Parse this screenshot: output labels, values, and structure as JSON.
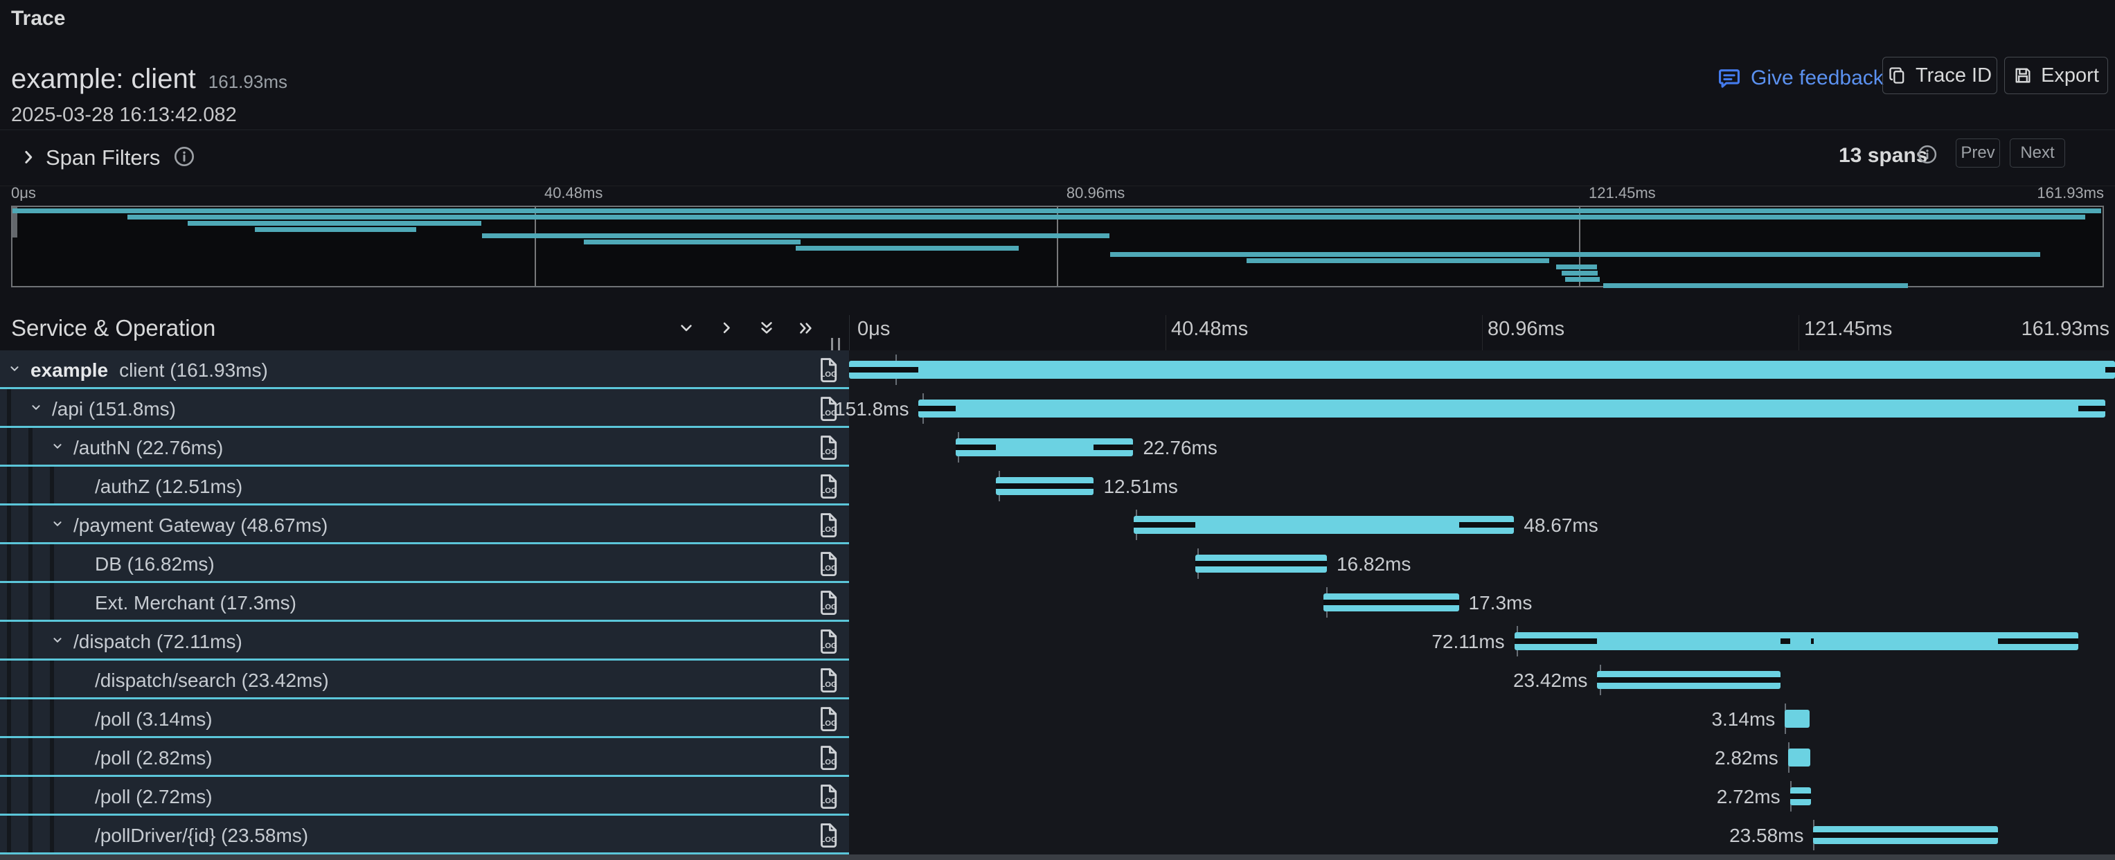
{
  "header": {
    "title": "Trace",
    "trace_name": "example: client",
    "trace_duration": "161.93ms",
    "timestamp": "2025-03-28 16:13:42.082",
    "feedback_label": "Give feedback",
    "trace_id_label": "Trace ID",
    "export_label": "Export"
  },
  "filters": {
    "label": "Span Filters",
    "span_count": "13 spans",
    "prev_label": "Prev",
    "next_label": "Next"
  },
  "table_header": "Service & Operation",
  "timeline": {
    "total_ms": 161.93,
    "tick_ms": [
      0,
      40.48,
      80.96,
      121.45,
      161.93
    ],
    "tick_labels": [
      "0μs",
      "40.48ms",
      "80.96ms",
      "121.45ms",
      "161.93ms"
    ]
  },
  "colors": {
    "span_bar": "#6bd2e2",
    "minimap_bar": "#4fa9b7",
    "critical_path": "#0d0f12",
    "link_blue": "#5b91f0",
    "row_underline": "#5bc6d9"
  },
  "spans": [
    {
      "service": "example",
      "label": "client (161.93ms)",
      "level": 0,
      "expandable": true,
      "start_ms": 0,
      "duration_ms": 161.93,
      "duration_label": "",
      "label_side": "none",
      "critical_path_ms": [
        [
          0,
          8.9
        ],
        [
          160.7,
          161.93
        ]
      ],
      "log_tick_ms": 5.9
    },
    {
      "service": "",
      "label": "/api (151.8ms)",
      "level": 1,
      "expandable": true,
      "start_ms": 8.9,
      "duration_ms": 151.8,
      "duration_label": "151.8ms",
      "label_side": "left",
      "critical_path_ms": [
        [
          8.9,
          13.6
        ],
        [
          157.2,
          160.7
        ]
      ],
      "log_tick_ms": 9.4
    },
    {
      "service": "",
      "label": "/authN (22.76ms)",
      "level": 2,
      "expandable": true,
      "start_ms": 13.6,
      "duration_ms": 22.76,
      "duration_label": "22.76ms",
      "label_side": "right",
      "critical_path_ms": [
        [
          13.6,
          18.8
        ],
        [
          31.31,
          36.36
        ]
      ],
      "log_tick_ms": 13.9
    },
    {
      "service": "",
      "label": "/authZ (12.51ms)",
      "level": 3,
      "expandable": false,
      "start_ms": 18.8,
      "duration_ms": 12.51,
      "duration_label": "12.51ms",
      "label_side": "right",
      "critical_path_ms": [
        [
          18.8,
          31.31
        ]
      ],
      "log_tick_ms": 19.1
    },
    {
      "service": "",
      "label": "/payment Gateway (48.67ms)",
      "level": 2,
      "expandable": true,
      "start_ms": 36.4,
      "duration_ms": 48.67,
      "duration_label": "48.67ms",
      "label_side": "right",
      "critical_path_ms": [
        [
          36.4,
          44.3
        ],
        [
          78.0,
          85.07
        ]
      ],
      "log_tick_ms": 36.7
    },
    {
      "service": "",
      "label": "DB (16.82ms)",
      "level": 3,
      "expandable": false,
      "start_ms": 44.3,
      "duration_ms": 16.82,
      "duration_label": "16.82ms",
      "label_side": "right",
      "critical_path_ms": [
        [
          44.3,
          61.12
        ]
      ],
      "log_tick_ms": 44.6
    },
    {
      "service": "",
      "label": "Ext. Merchant (17.3ms)",
      "level": 3,
      "expandable": false,
      "start_ms": 60.7,
      "duration_ms": 17.3,
      "duration_label": "17.3ms",
      "label_side": "right",
      "critical_path_ms": [
        [
          60.7,
          78.0
        ]
      ],
      "log_tick_ms": 61.0
    },
    {
      "service": "",
      "label": "/dispatch (72.11ms)",
      "level": 2,
      "expandable": true,
      "start_ms": 85.1,
      "duration_ms": 72.11,
      "duration_label": "72.11ms",
      "label_side": "left",
      "critical_path_ms": [
        [
          85.1,
          95.7
        ],
        [
          119.12,
          120.35
        ],
        [
          123.0,
          123.35
        ],
        [
          147.0,
          157.21
        ]
      ],
      "log_tick_ms": 85.4
    },
    {
      "service": "",
      "label": "/dispatch/search (23.42ms)",
      "level": 3,
      "expandable": false,
      "start_ms": 95.7,
      "duration_ms": 23.42,
      "duration_label": "23.42ms",
      "label_side": "left",
      "critical_path_ms": [
        [
          95.7,
          119.12
        ]
      ],
      "log_tick_ms": 96.0
    },
    {
      "service": "",
      "label": "/poll (3.14ms)",
      "level": 3,
      "expandable": false,
      "start_ms": 119.7,
      "duration_ms": 3.14,
      "duration_label": "3.14ms",
      "label_side": "left",
      "critical_path_ms": [],
      "log_tick_ms": 119.7
    },
    {
      "service": "",
      "label": "/poll (2.82ms)",
      "level": 3,
      "expandable": false,
      "start_ms": 120.1,
      "duration_ms": 2.82,
      "duration_label": "2.82ms",
      "label_side": "left",
      "critical_path_ms": [],
      "log_tick_ms": 120.1
    },
    {
      "service": "",
      "label": "/poll (2.72ms)",
      "level": 3,
      "expandable": false,
      "start_ms": 120.35,
      "duration_ms": 2.72,
      "duration_label": "2.72ms",
      "label_side": "left",
      "critical_path_ms": [
        [
          120.35,
          123.07
        ]
      ],
      "log_tick_ms": 120.35
    },
    {
      "service": "",
      "label": "/pollDriver/{id} (23.58ms)",
      "level": 3,
      "expandable": false,
      "start_ms": 123.35,
      "duration_ms": 23.58,
      "duration_label": "23.58ms",
      "label_side": "left",
      "critical_path_ms": [
        [
          123.35,
          146.93
        ]
      ],
      "log_tick_ms": 123.35
    }
  ]
}
